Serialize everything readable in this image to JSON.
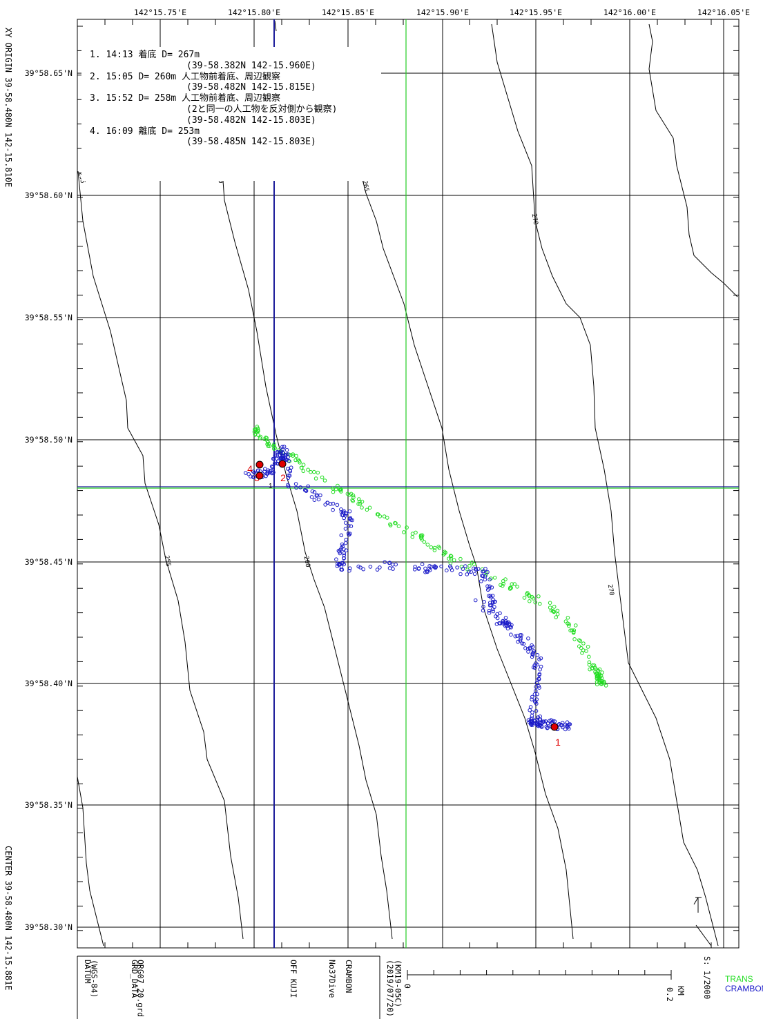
{
  "lon_labels": [
    "142°15.75'E",
    "142°15.80'E",
    "142°15.85'E",
    "142°15.90'E",
    "142°15.95'E",
    "142°16.00'E",
    "142°16.05'E"
  ],
  "lat_labels": [
    "39°58.65'N",
    "39°58.60'N",
    "39°58.55'N",
    "39°58.50'N",
    "39°58.45'N",
    "39°58.40'N",
    "39°58.35'N",
    "39°58.30'N"
  ],
  "xy_origin": "XY ORIGIN  39-58.480N  142-15.810E",
  "center": "CENTER 39-58.480N  142-15.881E",
  "notes": [
    {
      "text": "1. 14:13 着底 D= 267m",
      "indent": 1
    },
    {
      "text": "(39-58.382N 142-15.960E)",
      "indent": 2
    },
    {
      "text": "2. 15:05 D= 260m 人工物前着底、周辺観察",
      "indent": 1
    },
    {
      "text": "(39-58.482N 142-15.815E)",
      "indent": 2
    },
    {
      "text": "3. 15:52 D= 258m 人工物前着底、周辺観察",
      "indent": 1
    },
    {
      "text": "(2と同一の人工物を反対側から観察)",
      "indent": 2
    },
    {
      "text": "(39-58.482N 142-15.803E)",
      "indent": 2
    },
    {
      "text": "4. 16:09 離底 D= 253m",
      "indent": 1
    },
    {
      "text": "(39-58.485N 142-15.803E)",
      "indent": 2
    }
  ],
  "contours": [
    {
      "depth": "255",
      "labels": [
        "255",
        "255"
      ]
    },
    {
      "depth": "260",
      "labels": [
        "260",
        "260"
      ]
    },
    {
      "depth": "265",
      "labels": [
        "265"
      ]
    },
    {
      "depth": "270",
      "labels": [
        "270",
        "270"
      ]
    }
  ],
  "points": [
    {
      "label": "1",
      "lat": 39.97303,
      "lon": 142.266
    },
    {
      "label": "2",
      "lat": 39.9747,
      "lon": 142.26358
    },
    {
      "label": "3",
      "lat": 39.9747,
      "lon": 142.26338
    },
    {
      "label": "4",
      "lat": 39.97475,
      "lon": 142.26338
    }
  ],
  "marker_small_label": "1",
  "footer": {
    "datum": "DATUM\n(WGS-84)",
    "grd": "GRD_DATA\nORG07_20.grd",
    "area": "OFF KUJI",
    "dive": "No37Dive",
    "vehicle": "CRAMBON",
    "date": "(2019/07/20)\n(KM19-05C)",
    "scale_start": "0",
    "scale_end": "0.2",
    "scale_unit": "KM",
    "scale_ratio": "S: 1/2000"
  },
  "legend": [
    {
      "name": "TRANS",
      "color": "#22dd22"
    },
    {
      "name": "CRAMBON",
      "color": "#1a1ac8"
    }
  ],
  "colors": {
    "grid": "#000000",
    "trans": "#22dd22",
    "crambon": "#1a1ac8",
    "marker": "#e00000",
    "ref_blue": "#1a1a99",
    "ref_green": "#22cc22"
  }
}
